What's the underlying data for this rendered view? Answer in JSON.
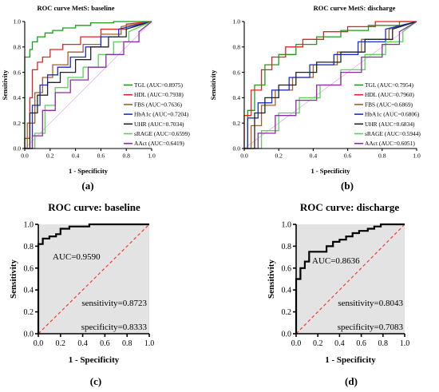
{
  "colors": {
    "axis": "#000000",
    "shade": "#e3e3e3",
    "diagonal": "#ff2a2a",
    "ref_diagonal": "#d9b3e6"
  },
  "chart_data": [
    {
      "panel": "(a)",
      "type": "line",
      "title": "ROC curve MetS: baseline",
      "xlabel": "1 - Specificity",
      "ylabel": "Sensitivity",
      "xlim": [
        0,
        1
      ],
      "ylim": [
        0,
        1
      ],
      "xticks": [
        "0.0",
        "0.2",
        "0.4",
        "0.6",
        "0.8",
        "1.0"
      ],
      "yticks": [
        "0.0",
        "0.2",
        "0.4",
        "0.6",
        "0.8",
        "1.0"
      ],
      "grid": false,
      "legend_position": "right",
      "series": [
        {
          "name": "TGL (AUC=0.8975)",
          "color": "#1a9e1a",
          "x": [
            0,
            0,
            0.02,
            0.04,
            0.04,
            0.06,
            0.06,
            0.1,
            0.1,
            0.16,
            0.16,
            0.22,
            0.22,
            0.3,
            0.3,
            0.4,
            0.4,
            0.52,
            0.52,
            0.7,
            0.7,
            1
          ],
          "y": [
            0,
            0.72,
            0.72,
            0.72,
            0.78,
            0.78,
            0.84,
            0.84,
            0.88,
            0.88,
            0.91,
            0.91,
            0.93,
            0.93,
            0.95,
            0.95,
            0.97,
            0.97,
            0.99,
            0.99,
            1,
            1
          ]
        },
        {
          "name": "HDL (AUC=0.7938)",
          "color": "#e52222",
          "x": [
            0,
            0,
            0.04,
            0.04,
            0.06,
            0.06,
            0.1,
            0.1,
            0.14,
            0.14,
            0.2,
            0.2,
            0.3,
            0.3,
            0.44,
            0.44,
            0.6,
            0.6,
            0.8,
            0.8,
            1
          ],
          "y": [
            0,
            0.08,
            0.08,
            0.4,
            0.4,
            0.62,
            0.62,
            0.68,
            0.68,
            0.72,
            0.72,
            0.78,
            0.78,
            0.82,
            0.82,
            0.88,
            0.88,
            0.94,
            0.94,
            0.98,
            1
          ]
        },
        {
          "name": "FBS (AUC=0.7636)",
          "color": "#a0602a",
          "x": [
            0,
            0.02,
            0.02,
            0.08,
            0.08,
            0.14,
            0.14,
            0.22,
            0.22,
            0.34,
            0.34,
            0.46,
            0.46,
            0.6,
            0.6,
            0.76,
            0.76,
            1
          ],
          "y": [
            0,
            0,
            0.2,
            0.2,
            0.44,
            0.44,
            0.56,
            0.56,
            0.66,
            0.66,
            0.76,
            0.76,
            0.82,
            0.82,
            0.9,
            0.9,
            0.96,
            1
          ]
        },
        {
          "name": "HbA1c (AUC=0.7204)",
          "color": "#1c2cc8",
          "x": [
            0,
            0.06,
            0.06,
            0.12,
            0.12,
            0.18,
            0.18,
            0.26,
            0.26,
            0.36,
            0.36,
            0.48,
            0.48,
            0.6,
            0.6,
            0.74,
            0.74,
            1
          ],
          "y": [
            0,
            0,
            0.34,
            0.34,
            0.5,
            0.5,
            0.58,
            0.58,
            0.64,
            0.64,
            0.72,
            0.72,
            0.8,
            0.8,
            0.88,
            0.88,
            0.94,
            1
          ]
        },
        {
          "name": "UHR (AUC=0.7034)",
          "color": "#222222",
          "x": [
            0,
            0.04,
            0.04,
            0.1,
            0.1,
            0.18,
            0.18,
            0.28,
            0.28,
            0.4,
            0.4,
            0.52,
            0.52,
            0.66,
            0.66,
            0.8,
            0.8,
            1
          ],
          "y": [
            0,
            0,
            0.28,
            0.28,
            0.42,
            0.42,
            0.52,
            0.52,
            0.6,
            0.6,
            0.7,
            0.7,
            0.8,
            0.8,
            0.88,
            0.88,
            0.94,
            1
          ]
        },
        {
          "name": "sRAGE (AUC=0.6599)",
          "color": "#5ad15a",
          "x": [
            0,
            0.08,
            0.08,
            0.16,
            0.16,
            0.24,
            0.24,
            0.34,
            0.34,
            0.46,
            0.46,
            0.58,
            0.58,
            0.7,
            0.7,
            0.82,
            0.82,
            1
          ],
          "y": [
            0,
            0,
            0.12,
            0.12,
            0.34,
            0.34,
            0.48,
            0.48,
            0.56,
            0.56,
            0.64,
            0.64,
            0.74,
            0.74,
            0.84,
            0.84,
            0.92,
            1
          ]
        },
        {
          "name": "AAct (AUC=0.6419)",
          "color": "#8b2aa6",
          "x": [
            0,
            0.06,
            0.06,
            0.14,
            0.14,
            0.24,
            0.24,
            0.36,
            0.36,
            0.5,
            0.5,
            0.64,
            0.64,
            0.78,
            0.78,
            0.9,
            0.9,
            1
          ],
          "y": [
            0,
            0,
            0.1,
            0.1,
            0.3,
            0.3,
            0.44,
            0.44,
            0.54,
            0.54,
            0.64,
            0.64,
            0.74,
            0.74,
            0.84,
            0.84,
            0.92,
            1
          ]
        }
      ]
    },
    {
      "panel": "(b)",
      "type": "line",
      "title": "ROC curve MetS: discharge",
      "xlabel": "1 - Specificity",
      "ylabel": "Sensitivity",
      "xlim": [
        0,
        1
      ],
      "ylim": [
        0,
        1
      ],
      "xticks": [
        "0.0",
        "0.2",
        "0.4",
        "0.6",
        "0.8",
        "1.0"
      ],
      "yticks": [
        "0.0",
        "0.2",
        "0.4",
        "0.6",
        "0.8",
        "1.0"
      ],
      "grid": false,
      "legend_position": "right",
      "series": [
        {
          "name": "TGL (AUC=0.7954)",
          "color": "#1a9e1a",
          "x": [
            0,
            0.02,
            0.02,
            0.06,
            0.06,
            0.12,
            0.12,
            0.2,
            0.2,
            0.3,
            0.3,
            0.42,
            0.42,
            0.56,
            0.56,
            0.72,
            0.72,
            0.9,
            0.9,
            1
          ],
          "y": [
            0,
            0,
            0.3,
            0.3,
            0.5,
            0.5,
            0.66,
            0.66,
            0.74,
            0.74,
            0.82,
            0.82,
            0.88,
            0.88,
            0.93,
            0.93,
            0.97,
            0.97,
            1,
            1
          ]
        },
        {
          "name": "HDL (AUC=0.7960)",
          "color": "#e52222",
          "x": [
            0,
            0,
            0.04,
            0.04,
            0.1,
            0.1,
            0.16,
            0.16,
            0.24,
            0.24,
            0.34,
            0.34,
            0.46,
            0.46,
            0.6,
            0.6,
            0.76,
            0.76,
            1
          ],
          "y": [
            0,
            0.26,
            0.26,
            0.46,
            0.46,
            0.62,
            0.62,
            0.72,
            0.72,
            0.8,
            0.8,
            0.86,
            0.86,
            0.92,
            0.92,
            0.96,
            0.96,
            1,
            1
          ]
        },
        {
          "name": "FBS (AUC=0.6869)",
          "color": "#a0602a",
          "x": [
            0,
            0.04,
            0.04,
            0.1,
            0.1,
            0.18,
            0.18,
            0.28,
            0.28,
            0.4,
            0.4,
            0.54,
            0.54,
            0.68,
            0.68,
            0.84,
            0.84,
            1
          ],
          "y": [
            0,
            0,
            0.18,
            0.18,
            0.34,
            0.34,
            0.46,
            0.46,
            0.56,
            0.56,
            0.66,
            0.66,
            0.76,
            0.76,
            0.86,
            0.86,
            0.94,
            1
          ]
        },
        {
          "name": "HbA1c (AUC=0.6806)",
          "color": "#1c2cc8",
          "x": [
            0,
            0.02,
            0.02,
            0.08,
            0.08,
            0.16,
            0.16,
            0.26,
            0.26,
            0.38,
            0.38,
            0.52,
            0.52,
            0.66,
            0.66,
            0.82,
            0.82,
            1
          ],
          "y": [
            0,
            0,
            0.24,
            0.24,
            0.36,
            0.36,
            0.46,
            0.46,
            0.56,
            0.56,
            0.66,
            0.66,
            0.74,
            0.74,
            0.84,
            0.84,
            0.94,
            1
          ]
        },
        {
          "name": "UHR (AUC=0.6834)",
          "color": "#222222",
          "x": [
            0,
            0.06,
            0.06,
            0.12,
            0.12,
            0.2,
            0.2,
            0.3,
            0.3,
            0.42,
            0.42,
            0.56,
            0.56,
            0.7,
            0.7,
            0.86,
            0.86,
            1
          ],
          "y": [
            0,
            0,
            0.28,
            0.28,
            0.4,
            0.4,
            0.5,
            0.5,
            0.6,
            0.6,
            0.68,
            0.68,
            0.76,
            0.76,
            0.86,
            0.86,
            0.94,
            1
          ]
        },
        {
          "name": "sRAGE (AUC=0.5944)",
          "color": "#5ad15a",
          "x": [
            0,
            0.1,
            0.1,
            0.2,
            0.2,
            0.32,
            0.32,
            0.44,
            0.44,
            0.56,
            0.56,
            0.7,
            0.7,
            0.82,
            0.82,
            0.92,
            0.92,
            1
          ],
          "y": [
            0,
            0,
            0.14,
            0.14,
            0.28,
            0.28,
            0.4,
            0.4,
            0.5,
            0.5,
            0.62,
            0.62,
            0.74,
            0.74,
            0.84,
            0.84,
            0.92,
            1
          ]
        },
        {
          "name": "AAct (AUC=0.6051)",
          "color": "#8b2aa6",
          "x": [
            0,
            0.08,
            0.08,
            0.18,
            0.18,
            0.3,
            0.3,
            0.42,
            0.42,
            0.56,
            0.56,
            0.68,
            0.68,
            0.8,
            0.8,
            0.9,
            0.9,
            1
          ],
          "y": [
            0,
            0,
            0.12,
            0.12,
            0.26,
            0.26,
            0.38,
            0.38,
            0.5,
            0.5,
            0.6,
            0.6,
            0.72,
            0.72,
            0.82,
            0.82,
            0.92,
            1
          ]
        }
      ]
    },
    {
      "panel": "(c)",
      "type": "line",
      "title": "ROC curve:  baseline",
      "xlabel": "1 - Specificity",
      "ylabel": "Sensitivity",
      "xlim": [
        0,
        1
      ],
      "ylim": [
        0,
        1
      ],
      "xticks": [
        "0.0",
        "0.2",
        "0.4",
        "0.6",
        "0.8",
        "1.0"
      ],
      "yticks": [
        "0.0",
        "0.2",
        "0.4",
        "0.6",
        "0.8",
        "1.0"
      ],
      "grid": false,
      "annotations": [
        "AUC=0.9590",
        "sensitivity=0.8723",
        "specificity=0.8333"
      ],
      "series": [
        {
          "color": "#000000",
          "x": [
            0,
            0,
            0.04,
            0.04,
            0.1,
            0.1,
            0.16,
            0.16,
            0.2,
            0.2,
            0.28,
            0.28,
            0.46,
            0.46,
            1
          ],
          "y": [
            0,
            0.82,
            0.82,
            0.87,
            0.87,
            0.89,
            0.89,
            0.91,
            0.91,
            0.96,
            0.96,
            0.98,
            0.98,
            1,
            1
          ]
        }
      ]
    },
    {
      "panel": "(d)",
      "type": "line",
      "title": "ROC curve:  discharge",
      "xlabel": "1 - Specificity",
      "ylabel": "Sensitivity",
      "xlim": [
        0,
        1
      ],
      "ylim": [
        0,
        1
      ],
      "xticks": [
        "0.0",
        "0.2",
        "0.4",
        "0.6",
        "0.8",
        "1.0"
      ],
      "yticks": [
        "0.0",
        "0.2",
        "0.4",
        "0.6",
        "0.8",
        "1.0"
      ],
      "grid": false,
      "annotations": [
        "AUC=0.8636",
        "sensitivity=0.8043",
        "specificity=0.7083"
      ],
      "series": [
        {
          "color": "#000000",
          "x": [
            0,
            0,
            0.04,
            0.04,
            0.08,
            0.08,
            0.12,
            0.12,
            0.28,
            0.28,
            0.34,
            0.34,
            0.4,
            0.4,
            0.46,
            0.46,
            0.52,
            0.52,
            0.58,
            0.58,
            0.66,
            0.66,
            0.72,
            0.72,
            0.78,
            0.78,
            1
          ],
          "y": [
            0,
            0.5,
            0.5,
            0.6,
            0.6,
            0.66,
            0.66,
            0.75,
            0.75,
            0.8,
            0.8,
            0.84,
            0.84,
            0.86,
            0.86,
            0.89,
            0.89,
            0.92,
            0.92,
            0.94,
            0.94,
            0.96,
            0.96,
            0.98,
            0.98,
            1,
            1
          ]
        }
      ]
    }
  ]
}
